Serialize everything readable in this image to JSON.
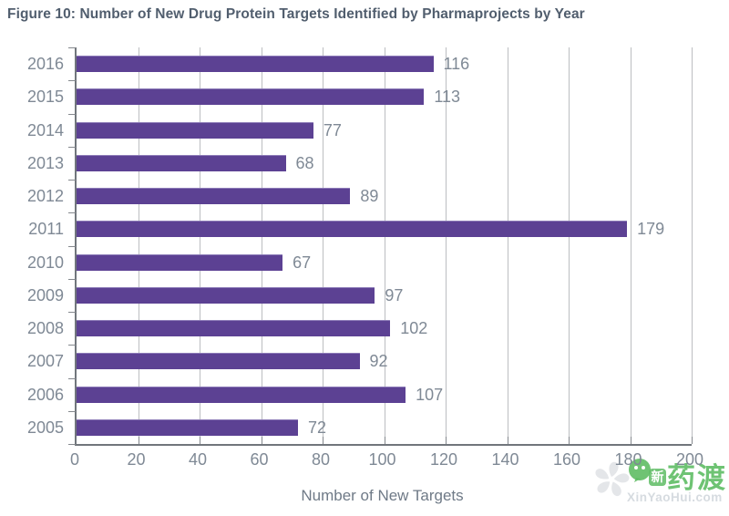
{
  "title": "Figure 10: Number of New Drug Protein Targets Identified by Pharmaprojects by Year",
  "chart_data": {
    "type": "bar",
    "orientation": "horizontal",
    "title": "Figure 10: Number of New Drug Protein Targets Identified by Pharmaprojects by Year",
    "categories": [
      "2016",
      "2015",
      "2014",
      "2013",
      "2012",
      "2011",
      "2010",
      "2009",
      "2008",
      "2007",
      "2006",
      "2005"
    ],
    "values": [
      116,
      113,
      77,
      68,
      89,
      179,
      67,
      97,
      102,
      92,
      107,
      72
    ],
    "xlabel": "Number of New Targets",
    "ylabel": "",
    "xlim": [
      0,
      200
    ],
    "xticks": [
      0,
      20,
      40,
      60,
      80,
      100,
      120,
      140,
      160,
      180,
      200
    ],
    "grid": "vertical",
    "legend": "none",
    "bar_color": "#5c4193",
    "label_color": "#7f8995",
    "title_color": "#515e6e"
  },
  "watermark": {
    "badge_text": "新",
    "logo_text": "药渡",
    "url": "XinYaoHui.com",
    "green": "#5fbd64"
  }
}
